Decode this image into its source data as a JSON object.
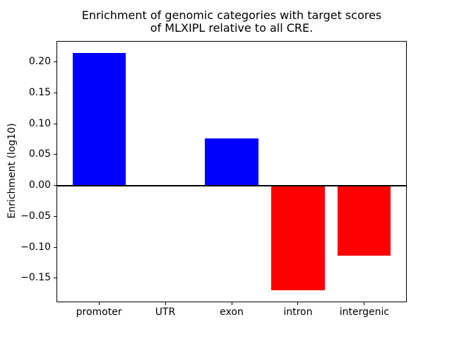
{
  "chart_data": {
    "type": "bar",
    "title": "Enrichment of genomic categories with target scores\nof MLXIPL relative to all CRE.",
    "ylabel": "Enrichment (log10)",
    "xlabel": "",
    "categories": [
      "promoter",
      "UTR",
      "exon",
      "intron",
      "intergenic"
    ],
    "values": [
      0.215,
      0.0,
      0.076,
      -0.17,
      -0.113
    ],
    "bar_colors": [
      "#0000ff",
      "#0000ff",
      "#0000ff",
      "#ff0000",
      "#ff0000"
    ],
    "positive_color": "#0000ff",
    "negative_color": "#ff0000",
    "bar_width": 0.8,
    "yticks": [
      0.2,
      0.15,
      0.1,
      0.05,
      0.0,
      -0.05,
      -0.1,
      -0.15
    ],
    "ytick_labels": [
      "0.20",
      "0.15",
      "0.10",
      "0.05",
      "0.00",
      "−0.05",
      "−0.10",
      "−0.15"
    ],
    "ylim": [
      -0.189,
      0.234
    ],
    "xlim": [
      -0.64,
      4.64
    ],
    "zero_line_value": 0,
    "grid": false,
    "legend": null,
    "background_color": "#ffffff",
    "axis_color": "#000000"
  }
}
